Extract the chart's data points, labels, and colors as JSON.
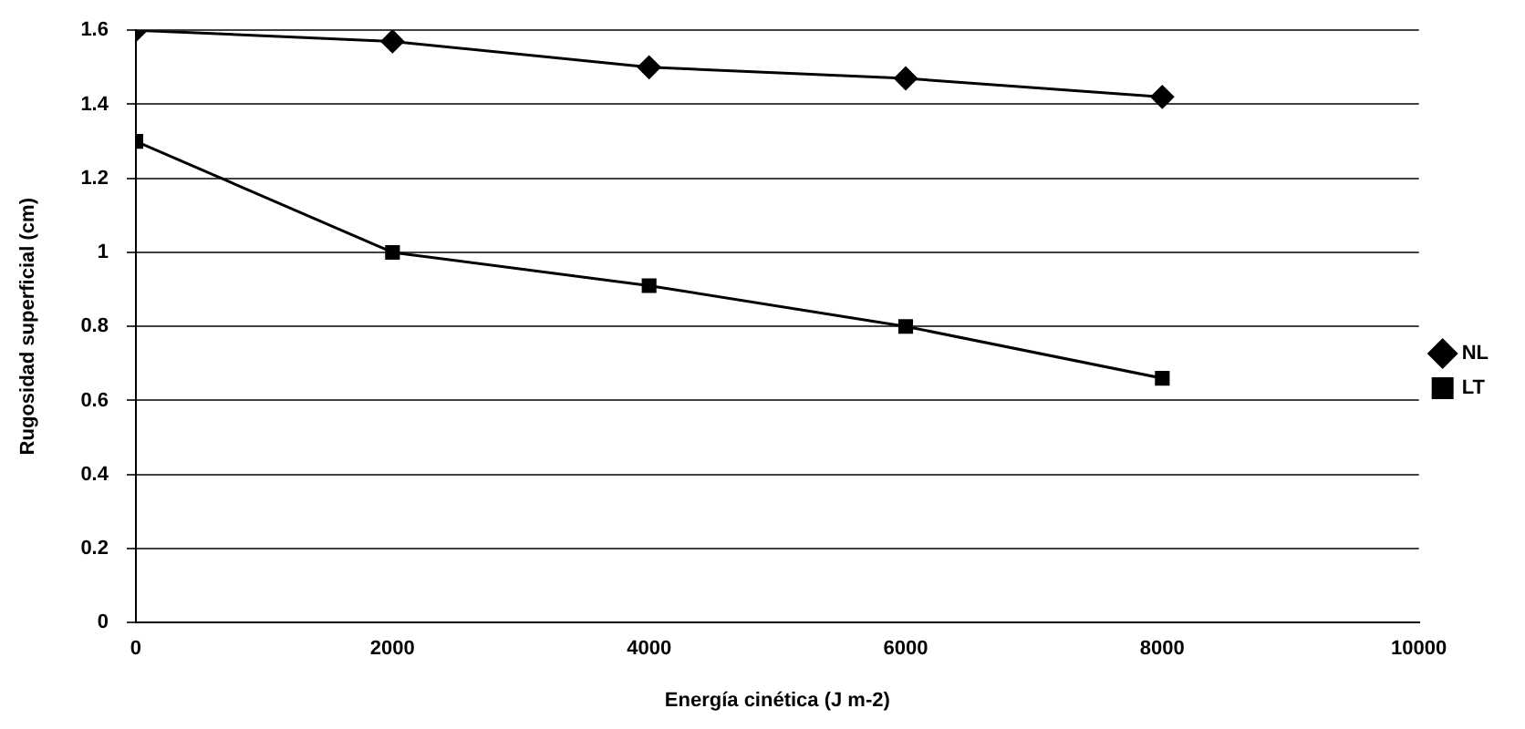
{
  "chart_data": {
    "type": "line",
    "xlabel": "Energía cinética (J m-2)",
    "ylabel": "Rugosidad superficial (cm)",
    "x": [
      0,
      2000,
      4000,
      6000,
      8000
    ],
    "series": [
      {
        "name": "NL",
        "color": "#000000",
        "marker": "diamond",
        "values": [
          1.6,
          1.57,
          1.5,
          1.47,
          1.42
        ]
      },
      {
        "name": "LT",
        "color": "#000000",
        "marker": "square",
        "values": [
          1.3,
          1.0,
          0.91,
          0.8,
          0.66
        ]
      }
    ],
    "xlim": [
      0,
      10000
    ],
    "xticks": [
      0,
      2000,
      4000,
      6000,
      8000,
      10000
    ],
    "ylim": [
      0,
      1.6
    ],
    "yticks": [
      0,
      0.2,
      0.4,
      0.6,
      0.8,
      1,
      1.2,
      1.4,
      1.6
    ],
    "grid": "y",
    "legend": "right",
    "line_style": "solid"
  }
}
